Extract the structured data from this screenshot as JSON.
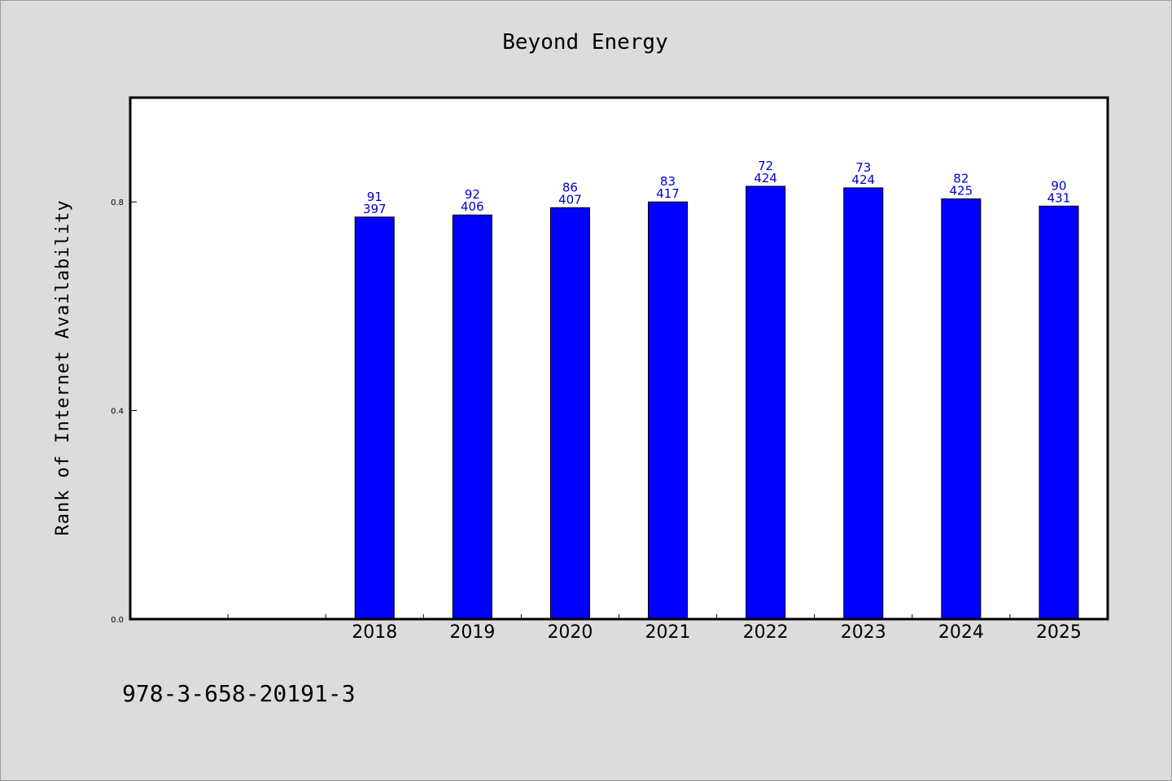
{
  "chart_data": {
    "type": "bar",
    "title": "Beyond Energy",
    "xlabel": "",
    "ylabel": "Rank of Internet Availability",
    "categories": [
      "",
      "",
      "2018",
      "2019",
      "2020",
      "2021",
      "2022",
      "2023",
      "2024",
      "2025"
    ],
    "values": [
      null,
      null,
      0.771,
      0.775,
      0.789,
      0.8,
      0.83,
      0.827,
      0.806,
      0.792
    ],
    "top_labels": [
      "",
      "",
      "91",
      "92",
      "86",
      "83",
      "72",
      "73",
      "82",
      "90"
    ],
    "bottom_labels": [
      "",
      "",
      "397",
      "406",
      "407",
      "417",
      "424",
      "424",
      "425",
      "431"
    ],
    "ylim": [
      0,
      1.0
    ],
    "yticks": [
      0.0,
      0.4,
      0.8
    ],
    "ytick_labels": [
      "0.0",
      "0.4",
      "0.8"
    ],
    "grid": false,
    "legend": "none",
    "bar_color": "#0000ff",
    "label_color": "#0000cc"
  },
  "footer_text": "978-3-658-20191-3"
}
